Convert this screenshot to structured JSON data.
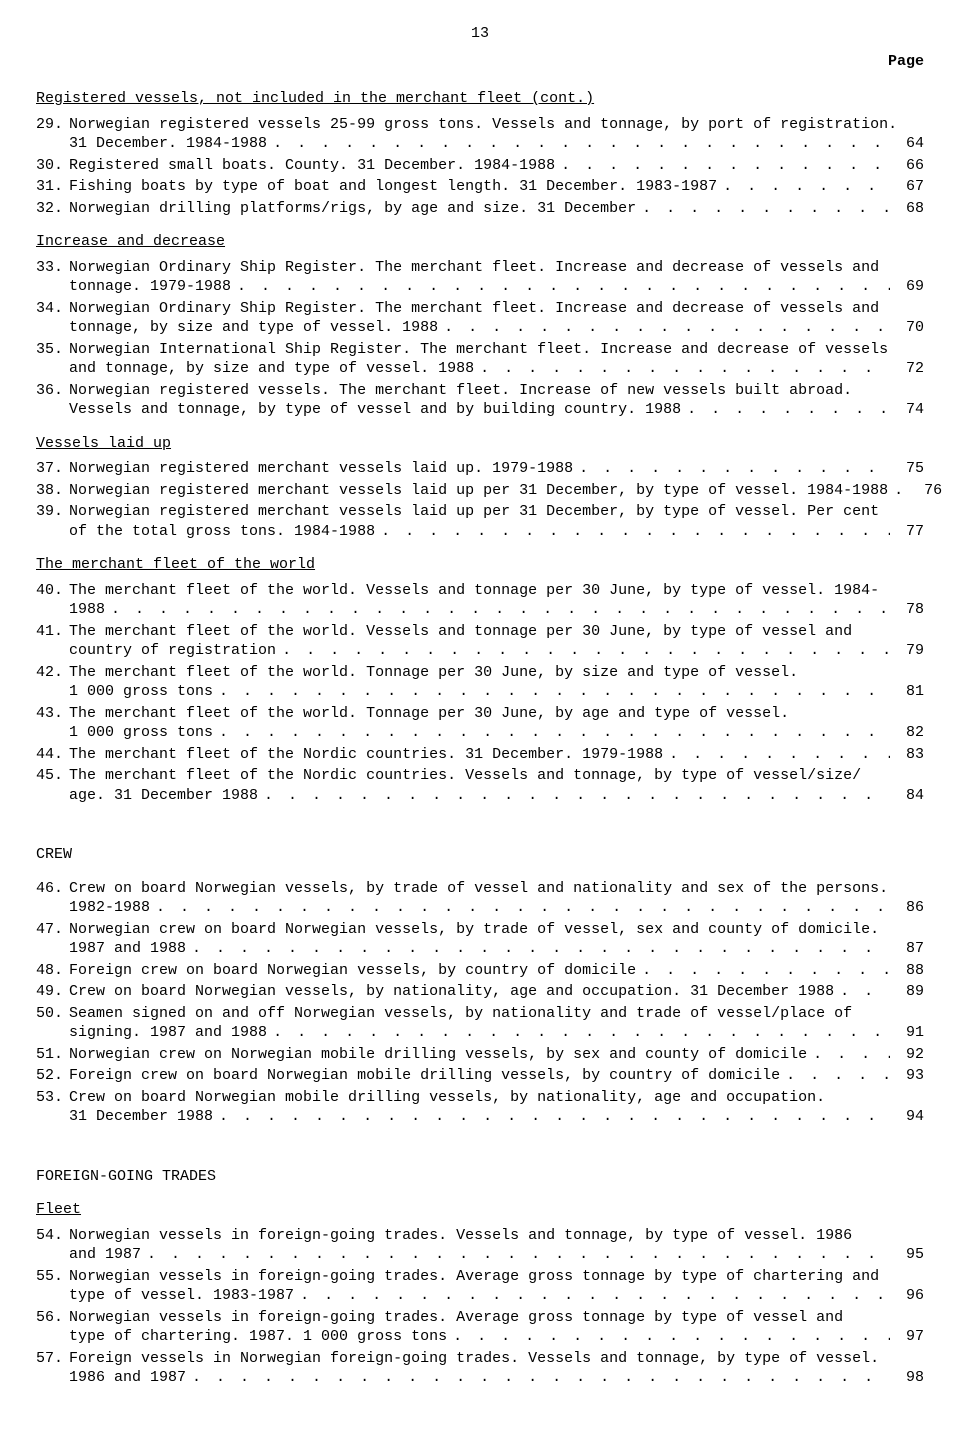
{
  "page_number": "13",
  "page_label": "Page",
  "sections": [
    {
      "title": "Registered vessels, not included in the merchant fleet (cont.)",
      "underline": true,
      "entries": [
        {
          "num": "29.",
          "lines_before": [],
          "last": "Norwegian registered vessels 25-99 gross tons.  Vessels and tonnage, by port of registration. 31 December.  1984-1988",
          "page": "64",
          "break": true,
          "break_text_first": "Norwegian registered vessels 25-99 gross tons.  Vessels and tonnage, by port of registration.",
          "break_text_last": "31 December.  1984-1988"
        },
        {
          "num": "30.",
          "last": "Registered small boats.  County.  31 December.  1984-1988",
          "page": "66"
        },
        {
          "num": "31.",
          "last": "Fishing boats by type of boat and longest length.  31 December.  1983-1987",
          "page": "67"
        },
        {
          "num": "32.",
          "last": "Norwegian drilling platforms/rigs, by age and size.  31 December",
          "page": "68"
        }
      ]
    },
    {
      "title": "Increase and decrease",
      "underline": true,
      "entries": [
        {
          "num": "33.",
          "break": true,
          "break_text_first": "Norwegian Ordinary Ship Register.  The merchant fleet.  Increase and decrease of vessels and",
          "break_text_last": "tonnage.  1979-1988",
          "page": "69"
        },
        {
          "num": "34.",
          "break": true,
          "break_text_first": "Norwegian Ordinary Ship Register.  The merchant fleet.  Increase and decrease of vessels and",
          "break_text_last": "tonnage, by size and type of vessel.  1988",
          "page": "70"
        },
        {
          "num": "35.",
          "break": true,
          "break_text_first": "Norwegian International Ship Register.  The merchant fleet.  Increase and decrease of vessels",
          "break_text_last": "and tonnage, by size and type of vessel.  1988",
          "page": "72"
        },
        {
          "num": "36.",
          "break": true,
          "break_text_first": "Norwegian registered vessels.  The merchant fleet.  Increase of new vessels built abroad.",
          "break_text_last": "Vessels and tonnage, by type of vessel and by building country.  1988",
          "page": "74"
        }
      ]
    },
    {
      "title": "Vessels laid up",
      "underline": true,
      "entries": [
        {
          "num": "37.",
          "last": "Norwegian registered merchant vessels laid up.  1979-1988",
          "page": "75"
        },
        {
          "num": "38.",
          "last": "Norwegian registered merchant vessels laid up per 31 December, by type of vessel.  1984-1988",
          "page": "76"
        },
        {
          "num": "39.",
          "break": true,
          "break_text_first": "Norwegian registered merchant vessels laid up per 31 December, by type of vessel.  Per cent",
          "break_text_last": "of the total gross tons.  1984-1988",
          "page": "77"
        }
      ]
    },
    {
      "title": "The merchant fleet of the world",
      "underline": true,
      "entries": [
        {
          "num": "40.",
          "break": true,
          "break_text_first": "The merchant fleet of the world.  Vessels and tonnage per 30 June, by type of vessel.  1984-",
          "break_text_last": "1988",
          "page": "78"
        },
        {
          "num": "41.",
          "break": true,
          "break_text_first": "The merchant fleet of the world.  Vessels and tonnage per 30 June, by type of vessel and",
          "break_text_last": "country of registration",
          "page": "79"
        },
        {
          "num": "42.",
          "break": true,
          "break_text_first": "The merchant fleet of the world.  Tonnage per 30 June, by size and type of vessel.",
          "break_text_last": "1 000 gross tons",
          "page": "81"
        },
        {
          "num": "43.",
          "break": true,
          "break_text_first": "The merchant fleet of the world.  Tonnage per 30 June, by age and type of vessel.",
          "break_text_last": "1 000 gross tons",
          "page": "82"
        },
        {
          "num": "44.",
          "last": "The merchant fleet of the Nordic countries.  31 December.  1979-1988",
          "page": "83"
        },
        {
          "num": "45.",
          "break": true,
          "break_text_first": "The merchant fleet of the Nordic countries.  Vessels and tonnage, by type of vessel/size/",
          "break_text_last": "age.  31 December 1988",
          "page": "84"
        }
      ]
    },
    {
      "title": "CREW",
      "underline": false,
      "big_gap": true,
      "entries": [
        {
          "num": "46.",
          "break": true,
          "break_text_first": "Crew on board Norwegian vessels, by trade of vessel and nationality and sex of the persons.",
          "break_text_last": "1982-1988",
          "page": "86"
        },
        {
          "num": "47.",
          "break": true,
          "break_text_first": "Norwegian crew on board Norwegian vessels, by trade of vessel, sex and county of domicile.",
          "break_text_last": "1987 and 1988",
          "page": "87"
        },
        {
          "num": "48.",
          "last": "Foreign crew on board Norwegian vessels, by country of domicile",
          "page": "88"
        },
        {
          "num": "49.",
          "last": "Crew on board Norwegian vessels, by nationality, age and occupation.  31 December 1988",
          "page": "89"
        },
        {
          "num": "50.",
          "break": true,
          "break_text_first": "Seamen signed on and off Norwegian vessels, by nationality and trade of vessel/place of",
          "break_text_last": "signing.  1987 and 1988",
          "page": "91"
        },
        {
          "num": "51.",
          "last": "Norwegian crew on Norwegian mobile drilling vessels, by sex and county of domicile",
          "page": "92"
        },
        {
          "num": "52.",
          "last": "Foreign crew on board Norwegian mobile drilling vessels, by country of domicile",
          "page": "93"
        },
        {
          "num": "53.",
          "break": true,
          "break_text_first": "Crew on board Norwegian mobile drilling vessels, by nationality, age and occupation.",
          "break_text_last": "31 December 1988",
          "page": "94"
        }
      ]
    },
    {
      "title": "FOREIGN-GOING TRADES",
      "underline": false,
      "big_gap": true,
      "entries": []
    },
    {
      "title": "Fleet",
      "underline": true,
      "entries": [
        {
          "num": "54.",
          "break": true,
          "break_text_first": "Norwegian vessels in foreign-going trades.  Vessels and tonnage, by type of vessel.  1986",
          "break_text_last": "and 1987",
          "page": "95"
        },
        {
          "num": "55.",
          "break": true,
          "break_text_first": "Norwegian vessels in foreign-going trades.  Average gross tonnage by type of chartering and",
          "break_text_last": "type of vessel.  1983-1987",
          "page": "96"
        },
        {
          "num": "56.",
          "break": true,
          "break_text_first": "Norwegian vessels in foreign-going trades.  Average gross tonnage by type of vessel and",
          "break_text_last": "type of chartering.  1987.  1 000 gross tons",
          "page": "97"
        },
        {
          "num": "57.",
          "break": true,
          "break_text_first": "Foreign vessels in Norwegian foreign-going trades.  Vessels and tonnage, by type of vessel.",
          "break_text_last": "1986 and 1987",
          "page": "98"
        }
      ]
    }
  ]
}
